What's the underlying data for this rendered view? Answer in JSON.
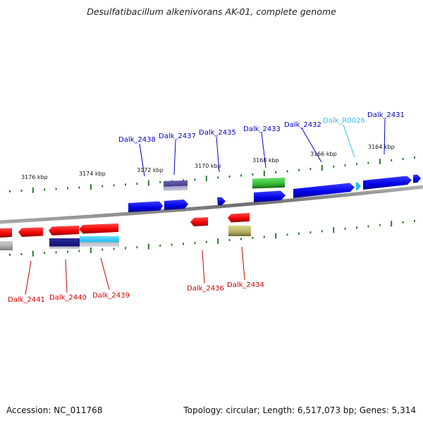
{
  "title": "Desulfatibacillum alkenivorans AK-01, complete genome",
  "footer": {
    "accession": "Accession: NC_011768",
    "stats": "Topology: circular; Length: 6,517,073 bp; Genes: 5,314"
  },
  "ticks": [
    {
      "label": "3176 kbp"
    },
    {
      "label": "3174 kbp"
    },
    {
      "label": "3172 kbp"
    },
    {
      "label": "3170 kbp"
    },
    {
      "label": "3168 kbp"
    },
    {
      "label": "3166 kbp"
    },
    {
      "label": "3164 kbp"
    }
  ],
  "genes_top": [
    {
      "label": "Dalk_2438",
      "color": "#0000cc"
    },
    {
      "label": "Dalk_2437",
      "color": "#0000cc"
    },
    {
      "label": "Dalk_2435",
      "color": "#0000cc"
    },
    {
      "label": "Dalk_2433",
      "color": "#0000cc"
    },
    {
      "label": "Dalk_2432",
      "color": "#0000cc"
    },
    {
      "label": "Dalk_R0026",
      "color": "#33bbee"
    },
    {
      "label": "Dalk_2431",
      "color": "#0000cc"
    }
  ],
  "genes_bottom": [
    {
      "label": "Dalk_2441",
      "color": "#cc0000"
    },
    {
      "label": "Dalk_2440",
      "color": "#cc0000"
    },
    {
      "label": "Dalk_2439",
      "color": "#cc0000"
    },
    {
      "label": "Dalk_2436",
      "color": "#cc0000"
    },
    {
      "label": "Dalk_2434",
      "color": "#cc0000"
    }
  ],
  "colors": {
    "forward_cds": "#0000ee",
    "reverse_cds": "#ee0000",
    "rna": "#33ccee",
    "tick": "#2a7a2a",
    "backbone": "#888888",
    "purple_feature": "#4a3f8a",
    "green_feature": "#33bb33",
    "olive_feature": "#b5b060",
    "navy_feature": "#111177",
    "grey_feature": "#aaaaaa"
  }
}
